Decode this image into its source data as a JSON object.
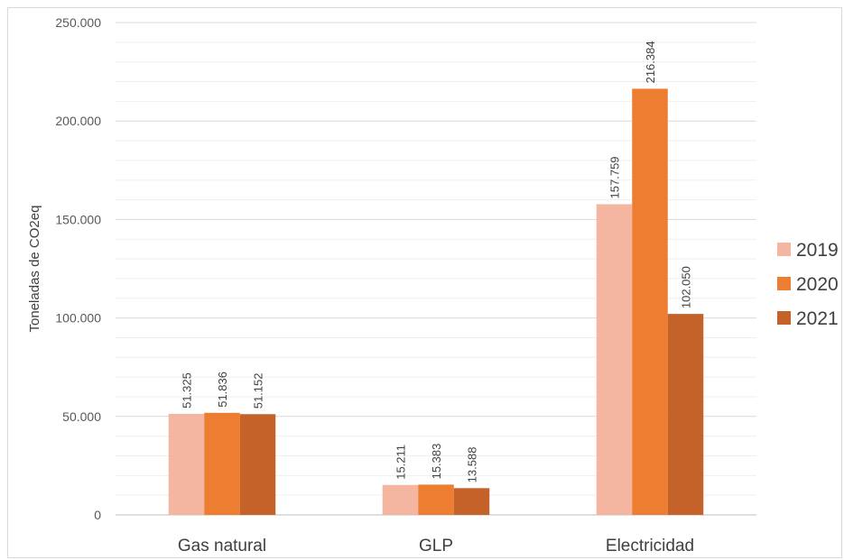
{
  "chart_data": {
    "type": "bar",
    "categories": [
      "Gas natural",
      "GLP",
      "Electricidad"
    ],
    "series": [
      {
        "name": "2019",
        "values": [
          51325,
          15211,
          157759
        ],
        "labels": [
          "51.325",
          "15.211",
          "157.759"
        ],
        "color": "#F4B6A0"
      },
      {
        "name": "2020",
        "values": [
          51836,
          15383,
          216384
        ],
        "labels": [
          "51.836",
          "15.383",
          "216.384"
        ],
        "color": "#ED7D31"
      },
      {
        "name": "2021",
        "values": [
          51152,
          13588,
          102050
        ],
        "labels": [
          "51.152",
          "13.588",
          "102.050"
        ],
        "color": "#C4622A"
      }
    ],
    "title": "",
    "xlabel": "",
    "ylabel": "Toneladas de CO2eq",
    "ylim": [
      0,
      250000
    ],
    "yticks": [
      0,
      50000,
      100000,
      150000,
      200000,
      250000
    ],
    "ytick_labels": [
      "0",
      "50.000",
      "100.000",
      "150.000",
      "200.000",
      "250.000"
    ],
    "grid": true,
    "legend_position": "right"
  }
}
